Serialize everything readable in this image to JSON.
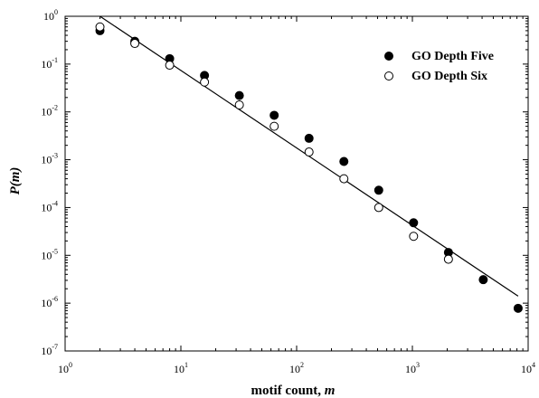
{
  "chart_data": {
    "type": "scatter",
    "xlabel": "motif count, m",
    "xlabel_parts": {
      "text": "motif count, ",
      "var": "m"
    },
    "ylabel": "P(m)",
    "xscale": "log",
    "yscale": "log",
    "xlim": [
      1,
      10000
    ],
    "ylim": [
      1e-07,
      1
    ],
    "x_ticks": [
      {
        "base": "10",
        "exp": "0",
        "value": 1
      },
      {
        "base": "10",
        "exp": "1",
        "value": 10
      },
      {
        "base": "10",
        "exp": "2",
        "value": 100
      },
      {
        "base": "10",
        "exp": "3",
        "value": 1000
      },
      {
        "base": "10",
        "exp": "4",
        "value": 10000
      }
    ],
    "y_ticks": [
      {
        "base": "10",
        "exp": "0",
        "value": 1
      },
      {
        "base": "10",
        "exp": "-1",
        "value": 0.1
      },
      {
        "base": "10",
        "exp": "-2",
        "value": 0.01
      },
      {
        "base": "10",
        "exp": "-3",
        "value": 0.001
      },
      {
        "base": "10",
        "exp": "-4",
        "value": 0.0001
      },
      {
        "base": "10",
        "exp": "-5",
        "value": 1e-05
      },
      {
        "base": "10",
        "exp": "-6",
        "value": 1e-06
      },
      {
        "base": "10",
        "exp": "-7",
        "value": 1e-07
      }
    ],
    "grid": false,
    "legend_position": "top-right",
    "series": [
      {
        "name": "GO Depth Five",
        "marker": "filled-circle",
        "color": "#000000",
        "points": [
          [
            2,
            0.5
          ],
          [
            4,
            0.3
          ],
          [
            8,
            0.13
          ],
          [
            16,
            0.058
          ],
          [
            32,
            0.022
          ],
          [
            64,
            0.0085
          ],
          [
            128,
            0.0028
          ],
          [
            256,
            0.00092
          ],
          [
            512,
            0.00023
          ],
          [
            1024,
            4.8e-05
          ],
          [
            2048,
            1.15e-05
          ],
          [
            4096,
            3.1e-06
          ],
          [
            8192,
            7.8e-07
          ]
        ]
      },
      {
        "name": "GO Depth Six",
        "marker": "open-circle",
        "color": "#000000",
        "points": [
          [
            2,
            0.6
          ],
          [
            4,
            0.27
          ],
          [
            8,
            0.095
          ],
          [
            16,
            0.042
          ],
          [
            32,
            0.014
          ],
          [
            64,
            0.005
          ],
          [
            128,
            0.00145
          ],
          [
            256,
            0.0004
          ],
          [
            512,
            0.0001
          ],
          [
            1024,
            2.5e-05
          ],
          [
            2048,
            8.3e-06
          ]
        ]
      }
    ],
    "fit_line": {
      "type": "power-law",
      "points": [
        [
          2,
          1.0
        ],
        [
          8192,
          1.4e-06
        ]
      ]
    }
  }
}
